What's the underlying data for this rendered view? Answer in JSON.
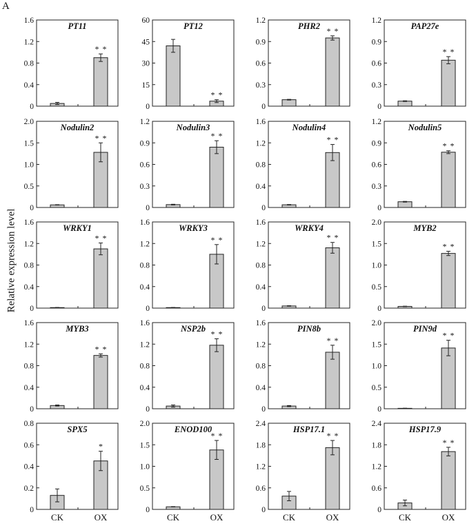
{
  "figure": {
    "panel_letter": "A",
    "ylabel": "Relative expression level",
    "significance_glyph": "*"
  },
  "chart_data": [
    {
      "type": "bar",
      "title": "PT11",
      "categories": [
        "CK",
        "OX"
      ],
      "values": [
        0.05,
        0.9
      ],
      "errors": [
        0.02,
        0.07
      ],
      "ylim": [
        0,
        1.6
      ],
      "yticks": [
        "0",
        "0.4",
        "0.8",
        "1.2",
        "1.6"
      ],
      "sig": [
        "",
        "**"
      ]
    },
    {
      "type": "bar",
      "title": "PT12",
      "categories": [
        "CK",
        "OX"
      ],
      "values": [
        42,
        3.5
      ],
      "errors": [
        4.5,
        1.0
      ],
      "ylim": [
        0,
        60
      ],
      "yticks": [
        "0",
        "15",
        "30",
        "45",
        "60"
      ],
      "sig": [
        "",
        "**"
      ]
    },
    {
      "type": "bar",
      "title": "PHR2",
      "categories": [
        "CK",
        "OX"
      ],
      "values": [
        0.09,
        0.95
      ],
      "errors": [
        0.005,
        0.03
      ],
      "ylim": [
        0,
        1.2
      ],
      "yticks": [
        "0",
        "0.3",
        "0.6",
        "0.9",
        "1.2"
      ],
      "sig": [
        "",
        "**"
      ]
    },
    {
      "type": "bar",
      "title": "PAP27e",
      "categories": [
        "CK",
        "OX"
      ],
      "values": [
        0.07,
        0.64
      ],
      "errors": [
        0.005,
        0.05
      ],
      "ylim": [
        0,
        1.2
      ],
      "yticks": [
        "0",
        "0.3",
        "0.6",
        "0.9",
        "1.2"
      ],
      "sig": [
        "",
        "**"
      ]
    },
    {
      "type": "bar",
      "title": "Nodulin2",
      "categories": [
        "CK",
        "OX"
      ],
      "values": [
        0.06,
        1.28
      ],
      "errors": [
        0.005,
        0.22
      ],
      "ylim": [
        0,
        2.0
      ],
      "yticks": [
        "0",
        "0.5",
        "1.0",
        "1.5",
        "2.0"
      ],
      "sig": [
        "",
        "**"
      ]
    },
    {
      "type": "bar",
      "title": "Nodulin3",
      "categories": [
        "CK",
        "OX"
      ],
      "values": [
        0.04,
        0.84
      ],
      "errors": [
        0.005,
        0.09
      ],
      "ylim": [
        0,
        1.2
      ],
      "yticks": [
        "0",
        "0.3",
        "0.6",
        "0.9",
        "1.2"
      ],
      "sig": [
        "",
        "**"
      ]
    },
    {
      "type": "bar",
      "title": "Nodulin4",
      "categories": [
        "CK",
        "OX"
      ],
      "values": [
        0.05,
        1.02
      ],
      "errors": [
        0.005,
        0.15
      ],
      "ylim": [
        0,
        1.6
      ],
      "yticks": [
        "0",
        "0.4",
        "0.8",
        "1.2",
        "1.6"
      ],
      "sig": [
        "",
        "**"
      ]
    },
    {
      "type": "bar",
      "title": "Nodulin5",
      "categories": [
        "CK",
        "OX"
      ],
      "values": [
        0.08,
        0.77
      ],
      "errors": [
        0.005,
        0.02
      ],
      "ylim": [
        0,
        1.2
      ],
      "yticks": [
        "0",
        "0.3",
        "0.6",
        "0.9",
        "1.2"
      ],
      "sig": [
        "",
        "**"
      ]
    },
    {
      "type": "bar",
      "title": "WRKY1",
      "categories": [
        "CK",
        "OX"
      ],
      "values": [
        0.01,
        1.1
      ],
      "errors": [
        0.003,
        0.11
      ],
      "ylim": [
        0,
        1.6
      ],
      "yticks": [
        "0",
        "0.4",
        "0.8",
        "1.2",
        "1.6"
      ],
      "sig": [
        "",
        "**"
      ]
    },
    {
      "type": "bar",
      "title": "WRKY3",
      "categories": [
        "CK",
        "OX"
      ],
      "values": [
        0.01,
        1.0
      ],
      "errors": [
        0.003,
        0.18
      ],
      "ylim": [
        0,
        1.6
      ],
      "yticks": [
        "0",
        "0.4",
        "0.8",
        "1.2",
        "1.6"
      ],
      "sig": [
        "",
        "**"
      ]
    },
    {
      "type": "bar",
      "title": "WRKY4",
      "categories": [
        "CK",
        "OX"
      ],
      "values": [
        0.04,
        1.12
      ],
      "errors": [
        0.005,
        0.1
      ],
      "ylim": [
        0,
        1.6
      ],
      "yticks": [
        "0",
        "0.4",
        "0.8",
        "1.2",
        "1.6"
      ],
      "sig": [
        "",
        "**"
      ]
    },
    {
      "type": "bar",
      "title": "MYB2",
      "categories": [
        "CK",
        "OX"
      ],
      "values": [
        0.04,
        1.27
      ],
      "errors": [
        0.005,
        0.05
      ],
      "ylim": [
        0,
        2.0
      ],
      "yticks": [
        "0",
        "0.5",
        "1.0",
        "1.5",
        "2.0"
      ],
      "sig": [
        "",
        "**"
      ]
    },
    {
      "type": "bar",
      "title": "MYB3",
      "categories": [
        "CK",
        "OX"
      ],
      "values": [
        0.06,
        0.99
      ],
      "errors": [
        0.01,
        0.03
      ],
      "ylim": [
        0,
        1.6
      ],
      "yticks": [
        "0",
        "0.4",
        "0.8",
        "1.2",
        "1.6"
      ],
      "sig": [
        "",
        "**"
      ]
    },
    {
      "type": "bar",
      "title": "NSP2b",
      "categories": [
        "CK",
        "OX"
      ],
      "values": [
        0.05,
        1.18
      ],
      "errors": [
        0.02,
        0.12
      ],
      "ylim": [
        0,
        1.6
      ],
      "yticks": [
        "0",
        "0.4",
        "0.8",
        "1.2",
        "1.6"
      ],
      "sig": [
        "",
        "**"
      ]
    },
    {
      "type": "bar",
      "title": "PIN8b",
      "categories": [
        "CK",
        "OX"
      ],
      "values": [
        0.05,
        1.05
      ],
      "errors": [
        0.01,
        0.13
      ],
      "ylim": [
        0,
        1.6
      ],
      "yticks": [
        "0",
        "0.4",
        "0.8",
        "1.2",
        "1.6"
      ],
      "sig": [
        "",
        "**"
      ]
    },
    {
      "type": "bar",
      "title": "PIN9d",
      "categories": [
        "CK",
        "OX"
      ],
      "values": [
        0.01,
        1.41
      ],
      "errors": [
        0.003,
        0.18
      ],
      "ylim": [
        0,
        2.0
      ],
      "yticks": [
        "0",
        "0.5",
        "1.0",
        "1.5",
        "2.0"
      ],
      "sig": [
        "",
        "**"
      ]
    },
    {
      "type": "bar",
      "title": "SPX5",
      "categories": [
        "CK",
        "OX"
      ],
      "values": [
        0.13,
        0.45
      ],
      "errors": [
        0.06,
        0.09
      ],
      "ylim": [
        0,
        0.8
      ],
      "yticks": [
        "0",
        "0.2",
        "0.4",
        "0.6",
        "0.8"
      ],
      "sig": [
        "",
        "*"
      ]
    },
    {
      "type": "bar",
      "title": "ENOD100",
      "categories": [
        "CK",
        "OX"
      ],
      "values": [
        0.06,
        1.38
      ],
      "errors": [
        0.005,
        0.22
      ],
      "ylim": [
        0,
        2.0
      ],
      "yticks": [
        "0",
        "0.5",
        "1.0",
        "1.5",
        "2.0"
      ],
      "sig": [
        "",
        "**"
      ]
    },
    {
      "type": "bar",
      "title": "HSP17.1",
      "categories": [
        "CK",
        "OX"
      ],
      "values": [
        0.37,
        1.72
      ],
      "errors": [
        0.13,
        0.2
      ],
      "ylim": [
        0,
        2.4
      ],
      "yticks": [
        "0",
        "0.6",
        "1.2",
        "1.8",
        "2.4"
      ],
      "sig": [
        "",
        "**"
      ]
    },
    {
      "type": "bar",
      "title": "HSP17.9",
      "categories": [
        "CK",
        "OX"
      ],
      "values": [
        0.18,
        1.61
      ],
      "errors": [
        0.08,
        0.12
      ],
      "ylim": [
        0,
        2.4
      ],
      "yticks": [
        "0",
        "0.6",
        "1.2",
        "1.8",
        "2.4"
      ],
      "sig": [
        "",
        "**"
      ]
    }
  ]
}
